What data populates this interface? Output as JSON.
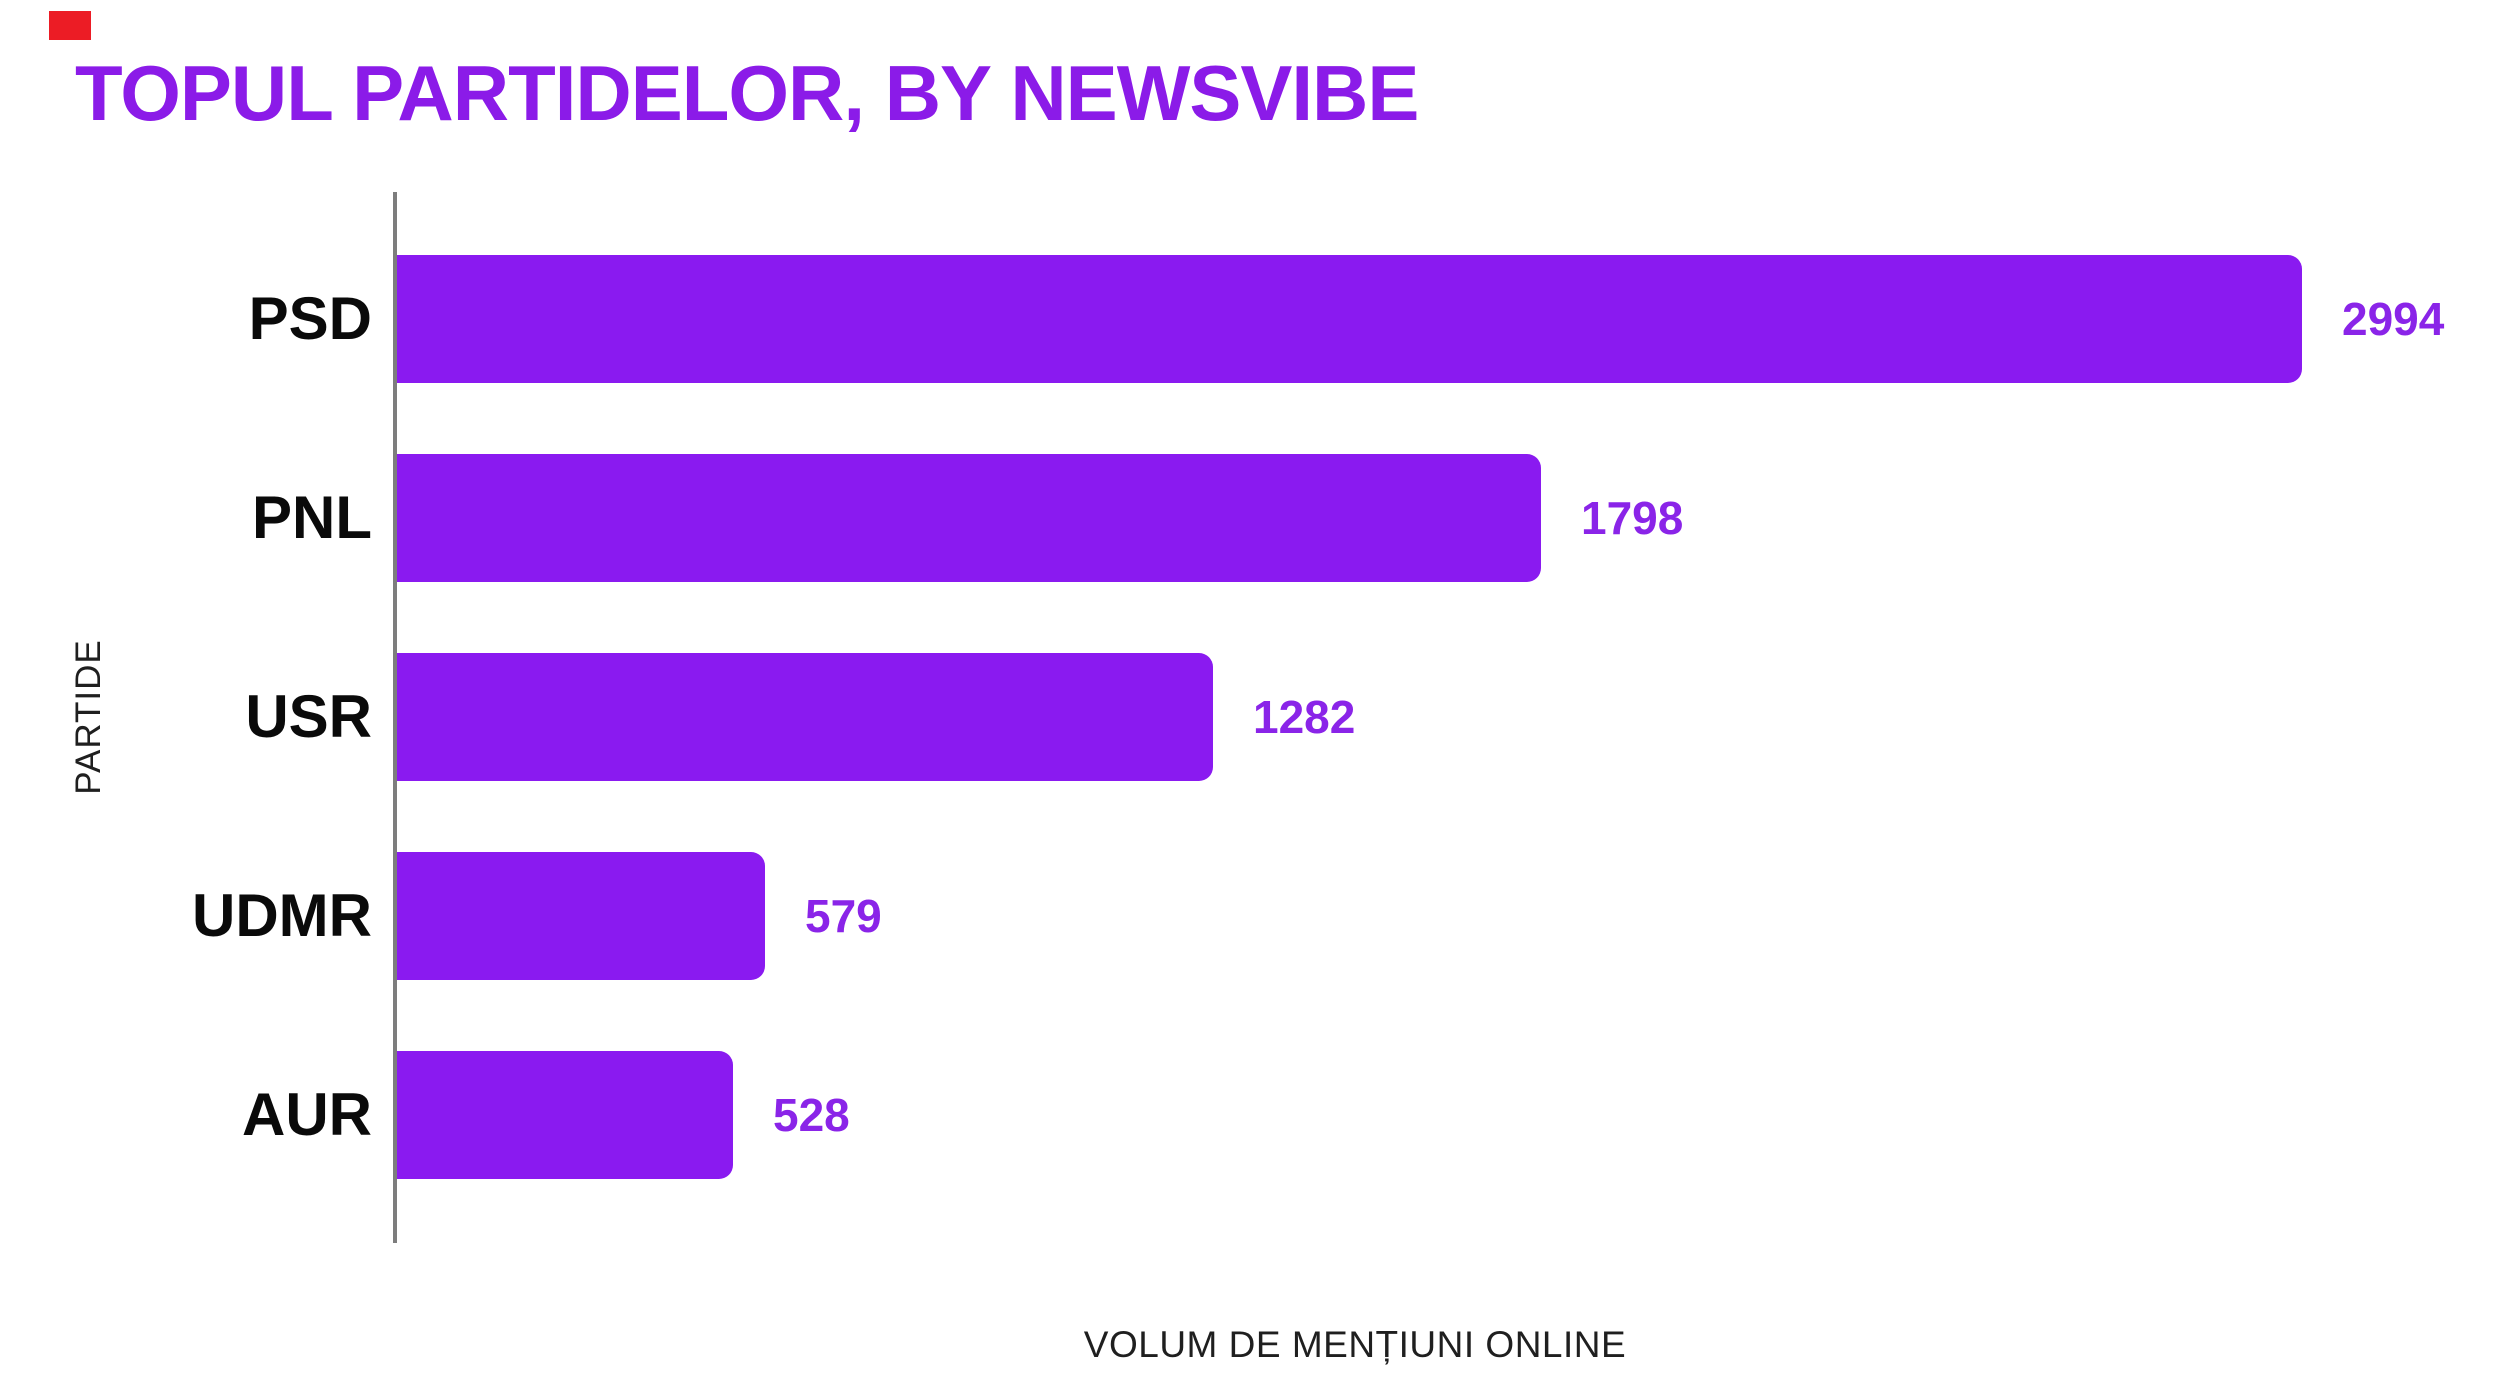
{
  "title": "TOPUL PARTIDELOR, BY NEWSVIBE",
  "corner_marker": {
    "color": "#ec1c25"
  },
  "colors": {
    "background": "#ffffff",
    "title": "#8b1be8",
    "bar": "#8a1af0",
    "value_label": "#8a24e8",
    "category_label": "#0a0a0a",
    "axis_line": "#7d7d7d",
    "axis_title": "#1f1f1f"
  },
  "chart_data": {
    "type": "bar",
    "orientation": "horizontal",
    "title": "TOPUL PARTIDELOR, BY NEWSVIBE",
    "categories": [
      "PSD",
      "PNL",
      "USR",
      "UDMR",
      "AUR"
    ],
    "values": [
      2994,
      1798,
      1282,
      579,
      528
    ],
    "xlabel": "VOLUM DE MENȚIUNI ONLINE",
    "ylabel": "PARTIDE",
    "xlim": [
      0,
      3000
    ],
    "grid": false,
    "legend": false,
    "value_labels": "outside-end"
  }
}
